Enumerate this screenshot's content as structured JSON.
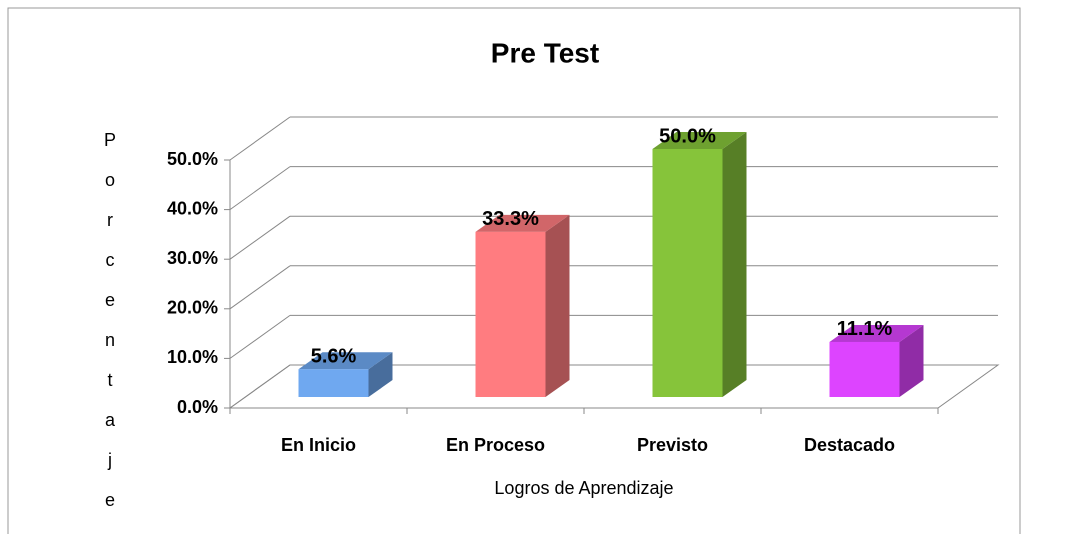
{
  "chart_data": {
    "type": "bar3d",
    "title": "Pre Test",
    "x_label": "Logros de Aprendizaje",
    "y_label": "Porcentaje",
    "categories": [
      "En Inicio",
      "En Proceso",
      "Previsto",
      "Destacado"
    ],
    "values": [
      5.6,
      33.3,
      50.0,
      11.1
    ],
    "value_labels": [
      "5.6%",
      "33.3%",
      "50.0%",
      "11.1%"
    ],
    "colors": [
      "#6fa8f0",
      "#ff7c80",
      "#86c43a",
      "#dd44ff"
    ],
    "ylim": [
      0,
      50
    ],
    "yticks": [
      {
        "value": 0,
        "label": "0.0%"
      },
      {
        "value": 10,
        "label": "10.0%"
      },
      {
        "value": 20,
        "label": "20.0%"
      },
      {
        "value": 30,
        "label": "30.0%"
      },
      {
        "value": 40,
        "label": "40.0%"
      },
      {
        "value": 50,
        "label": "50.0%"
      }
    ],
    "grid": true
  }
}
